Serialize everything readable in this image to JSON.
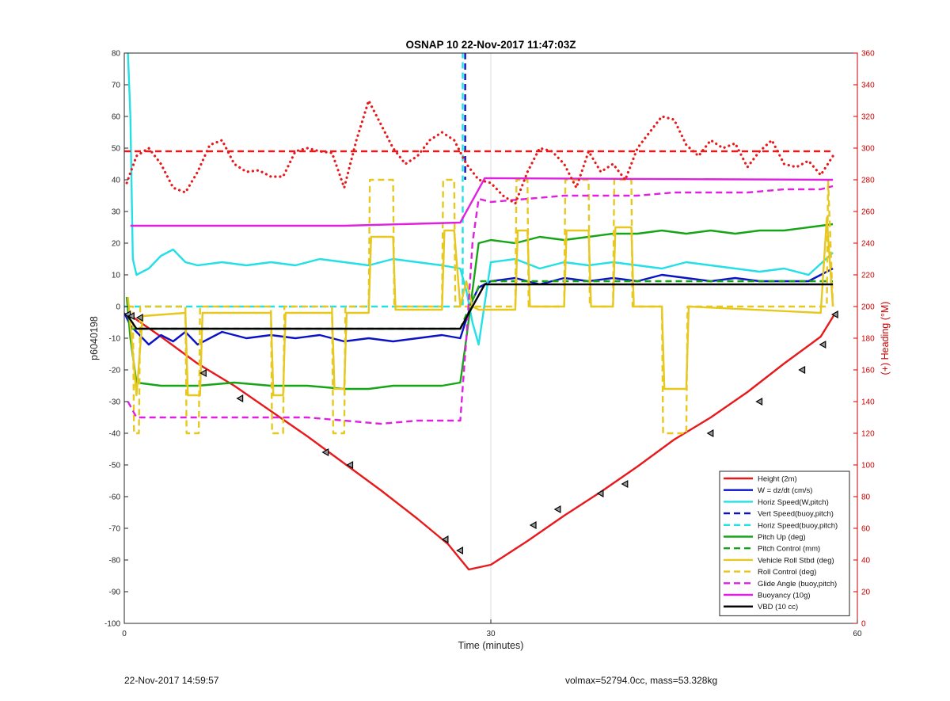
{
  "chart_data": {
    "type": "line",
    "title": "OSNAP 10 22-Nov-2017 11:47:03Z",
    "xlabel": "Time (minutes)",
    "ylabel": "p6040198",
    "y2label": "(+) Heading (°M)",
    "xlim": [
      0,
      60
    ],
    "ylim": [
      -100,
      80
    ],
    "y2lim": [
      0,
      360
    ],
    "xticks": [
      0,
      30,
      60
    ],
    "yticks": [
      -100,
      -90,
      -80,
      -70,
      -60,
      -50,
      -40,
      -30,
      -20,
      -10,
      0,
      10,
      20,
      30,
      40,
      50,
      60,
      70,
      80
    ],
    "y2ticks": [
      0,
      20,
      40,
      60,
      80,
      100,
      120,
      140,
      160,
      180,
      200,
      220,
      240,
      260,
      280,
      300,
      320,
      340,
      360
    ],
    "grid": "x only",
    "legend_position": "bottom-right",
    "axis_colors": {
      "left": "#000000",
      "right": "#cc0000"
    },
    "series": [
      {
        "name": "Height (2m)",
        "color": "#e8191b",
        "style": "solid",
        "x": [
          0.2,
          3,
          6,
          9,
          12,
          15,
          18,
          21,
          24,
          26.5,
          28.2,
          30,
          33,
          36,
          39,
          42,
          45,
          48,
          51,
          54,
          57,
          58.2
        ],
        "y": [
          -2,
          -9.5,
          -18,
          -25,
          -33,
          -41,
          -49.5,
          -58,
          -67,
          -75,
          -83,
          -81.5,
          -74,
          -66,
          -58.5,
          -50.5,
          -42,
          -35,
          -27,
          -18,
          -9.5,
          -2
        ]
      },
      {
        "name": "W = dz/dt (cm/s)",
        "color": "#0a12c8",
        "style": "solid",
        "x": [
          0,
          0.5,
          1,
          1.5,
          2,
          3,
          4,
          5,
          6,
          8,
          10,
          12,
          14,
          16,
          18,
          20,
          22,
          24,
          26,
          27.5,
          28,
          28.5,
          29,
          30,
          32,
          34,
          36,
          38,
          40,
          42,
          44,
          46,
          48,
          50,
          52,
          54,
          56,
          57,
          58
        ],
        "y": [
          -2,
          -6,
          -8,
          -10,
          -12,
          -9,
          -11,
          -8,
          -12,
          -8,
          -10,
          -9,
          -10,
          -9,
          -11,
          -10,
          -11,
          -10,
          -9,
          -10,
          -4,
          2,
          6,
          8,
          9,
          7,
          9,
          8,
          9,
          8,
          10,
          9,
          8,
          9,
          8,
          8,
          8,
          10,
          12
        ]
      },
      {
        "name": "Horiz Speed(W,pitch)",
        "color": "#22e0e6",
        "style": "solid",
        "x": [
          0.3,
          0.5,
          0.7,
          1,
          2,
          3,
          4,
          5,
          6,
          8,
          10,
          12,
          14,
          16,
          18,
          20,
          22,
          24,
          26,
          27.5,
          28,
          28.5,
          29,
          30,
          32,
          34,
          36,
          38,
          40,
          42,
          44,
          46,
          48,
          50,
          52,
          54,
          56,
          58
        ],
        "y": [
          80,
          60,
          15,
          10,
          12,
          16,
          18,
          14,
          13,
          14,
          13,
          14,
          13,
          15,
          14,
          13,
          15,
          14,
          13,
          12,
          5,
          -5,
          -12,
          14,
          15,
          12,
          14,
          13,
          14,
          13,
          12,
          14,
          13,
          12,
          11,
          12,
          10,
          17
        ]
      },
      {
        "name": "Vert Speed(buoy,pitch)",
        "color": "#0a12c8",
        "style": "dashed",
        "x": [
          27.9,
          27.9
        ],
        "y": [
          80,
          40
        ]
      },
      {
        "name": "Horiz Speed(buoy,pitch)",
        "color": "#22e0e6",
        "style": "dashed",
        "x": [
          0,
          27.5,
          27.7,
          27.7
        ],
        "y": [
          0,
          0,
          0,
          80
        ]
      },
      {
        "name": "Pitch Up (deg)",
        "color": "#16a516",
        "style": "solid",
        "x": [
          0.2,
          0.5,
          1,
          3,
          6,
          9,
          12,
          15,
          18,
          20,
          22,
          24,
          26,
          27.5,
          28,
          28.5,
          29,
          30,
          32,
          34,
          36,
          38,
          40,
          42,
          44,
          46,
          48,
          50,
          52,
          54,
          56,
          58
        ],
        "y": [
          3,
          -10,
          -24,
          -25,
          -25,
          -24,
          -25,
          -25,
          -26,
          -26,
          -25,
          -25,
          -25,
          -24,
          -10,
          5,
          20,
          21,
          20,
          22,
          21,
          22,
          23,
          23,
          24,
          23,
          24,
          23,
          24,
          24,
          25,
          26
        ]
      },
      {
        "name": "Pitch Control (mm)",
        "color": "#16a516",
        "style": "dashed",
        "x": [
          0.5,
          27.5,
          28.5,
          29.2,
          58
        ],
        "y": [
          -7,
          -7,
          2,
          8,
          8
        ]
      },
      {
        "name": "Vehicle Roll Stbd (deg)",
        "color": "#e6c81e",
        "style": "solid",
        "x": [
          0.3,
          1,
          1.5,
          5,
          5.2,
          6.2,
          6.4,
          12,
          12.2,
          13,
          13.2,
          17,
          17.2,
          18,
          18.2,
          20,
          20.2,
          22,
          22.2,
          26,
          26.2,
          27,
          27.5,
          28,
          28.5,
          29,
          30,
          32,
          32.2,
          33,
          33.2,
          36,
          36.2,
          38,
          38.2,
          40,
          40.2,
          41.5,
          41.7,
          44,
          44.2,
          46,
          46.2,
          57,
          57.5,
          58
        ],
        "y": [
          3,
          -28,
          -3,
          -2,
          -28,
          -28,
          -2,
          -2,
          -28,
          -28,
          -2,
          -2,
          -26,
          -26,
          -2,
          -2,
          22,
          22,
          -1,
          -1,
          24,
          24,
          0,
          8,
          0,
          -1,
          -1,
          -1,
          24,
          24,
          0,
          0,
          24,
          24,
          0,
          0,
          25,
          25,
          0,
          0,
          -26,
          -26,
          0,
          -2,
          28,
          0
        ]
      },
      {
        "name": "Roll Control (deg)",
        "color": "#e6c81e",
        "style": "dashed",
        "x": [
          0.3,
          0.7,
          0.8,
          1.2,
          1.3,
          5,
          5.1,
          6.1,
          6.2,
          12,
          12.1,
          13,
          13.1,
          17,
          17.1,
          18,
          18.1,
          20,
          20.1,
          22,
          22.1,
          26,
          26.1,
          27,
          27.1,
          28.5,
          28.6,
          32,
          32.1,
          33,
          33.1,
          36,
          36.1,
          38,
          38.1,
          40,
          40.1,
          41.5,
          41.6,
          44,
          44.1,
          46,
          46.1,
          57.5,
          57.6,
          58
        ],
        "y": [
          0,
          0,
          -40,
          -40,
          0,
          0,
          -40,
          -40,
          0,
          0,
          -40,
          -40,
          0,
          0,
          -40,
          -40,
          0,
          0,
          40,
          40,
          0,
          0,
          40,
          40,
          0,
          0,
          0,
          0,
          40,
          40,
          0,
          0,
          40,
          40,
          0,
          0,
          40,
          40,
          0,
          0,
          -40,
          -40,
          0,
          0,
          40,
          0
        ]
      },
      {
        "name": "Glide Angle (buoy,pitch)",
        "color": "#e020e0",
        "style": "dashed",
        "x": [
          0.3,
          1,
          3,
          6,
          9,
          12,
          15,
          18,
          21,
          24,
          27.5,
          28,
          28.5,
          29,
          30,
          33,
          36,
          39,
          42,
          45,
          48,
          51,
          54,
          57,
          58
        ],
        "y": [
          -30,
          -35,
          -35,
          -35,
          -35,
          -35,
          -35,
          -36,
          -37,
          -36,
          -36,
          -10,
          20,
          34,
          33,
          34,
          35,
          35,
          35,
          36,
          36,
          36,
          37,
          37,
          38
        ]
      },
      {
        "name": "Buoyancy (10g)",
        "color": "#e020e0",
        "style": "solid",
        "x": [
          0.5,
          18,
          27.5,
          29.5,
          58
        ],
        "y": [
          25.5,
          25.5,
          26.5,
          40.5,
          40
        ]
      },
      {
        "name": "VBD (10 cc)",
        "color": "#000000",
        "style": "solid",
        "x": [
          0.3,
          1,
          27.5,
          28.5,
          29.5,
          58
        ],
        "y": [
          -3,
          -7,
          -7,
          0,
          7,
          7
        ]
      },
      {
        "name": "",
        "color": "#e8191b",
        "style": "dashed",
        "axis": "right",
        "x": [
          0,
          58
        ],
        "y": [
          298,
          298
        ]
      },
      {
        "name": "",
        "color": "#e8191b",
        "style": "dotted",
        "axis": "right",
        "x": [
          0.2,
          1,
          2,
          3,
          4,
          5,
          6,
          7,
          8,
          9,
          10,
          11,
          12,
          13,
          14,
          15,
          16,
          17,
          18,
          19,
          20,
          21,
          22,
          23,
          24,
          25,
          26,
          27,
          28,
          29,
          30,
          31,
          32,
          33,
          34,
          35,
          36,
          37,
          38,
          39,
          40,
          41,
          42,
          43,
          44,
          45,
          46,
          47,
          48,
          49,
          50,
          51,
          52,
          53,
          54,
          55,
          56,
          57,
          58
        ],
        "y": [
          278,
          295,
          300,
          290,
          275,
          272,
          285,
          302,
          305,
          290,
          285,
          286,
          282,
          282,
          298,
          300,
          298,
          297,
          275,
          305,
          330,
          315,
          300,
          290,
          295,
          305,
          310,
          305,
          290,
          280,
          278,
          270,
          265,
          285,
          300,
          298,
          290,
          275,
          298,
          285,
          290,
          280,
          300,
          310,
          320,
          318,
          302,
          295,
          305,
          300,
          303,
          288,
          298,
          305,
          290,
          288,
          292,
          283,
          295
        ]
      },
      {
        "name": "",
        "color": "#000000",
        "style": "markers",
        "x": [
          0.3,
          0.6,
          1.3,
          6.5,
          9.5,
          16.5,
          18.5,
          26.3,
          27.5,
          33.5,
          35.5,
          39,
          41,
          48,
          52,
          55.5,
          57.2,
          58.2
        ],
        "y": [
          -2.5,
          -3,
          -3.5,
          -21,
          -29,
          -46,
          -50,
          -73.5,
          -77,
          -69,
          -64,
          -59,
          -56,
          -40,
          -30,
          -20,
          -12,
          -2.5
        ]
      }
    ]
  },
  "footer": {
    "date": "22-Nov-2017 14:59:57",
    "info": "volmax=52794.0cc, mass=53.328kg"
  }
}
